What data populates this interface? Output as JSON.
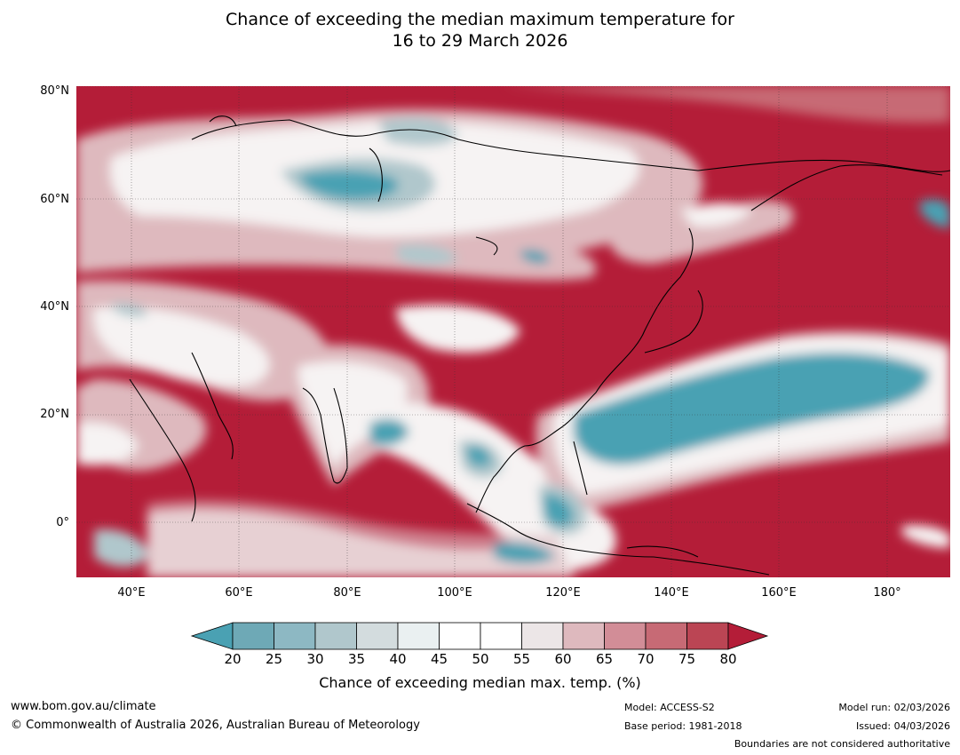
{
  "title": {
    "line1": "Chance of exceeding the median maximum temperature for",
    "line2": "16 to 29 March 2026"
  },
  "axes": {
    "lat_labels": [
      "80°N",
      "60°N",
      "40°N",
      "20°N",
      "0°"
    ],
    "lon_labels": [
      "40°E",
      "60°E",
      "80°E",
      "100°E",
      "120°E",
      "140°E",
      "160°E",
      "180°"
    ]
  },
  "colorbar": {
    "ticks": [
      "20",
      "25",
      "30",
      "35",
      "40",
      "45",
      "50",
      "55",
      "60",
      "65",
      "70",
      "75",
      "80"
    ],
    "colors": [
      "#4aa1b3",
      "#6ea9b6",
      "#8db8c3",
      "#b0c7cc",
      "#d3dcde",
      "#eaf0f1",
      "#ffffff",
      "#ffffff",
      "#ece6e7",
      "#deb9be",
      "#d28d97",
      "#c76a75",
      "#bb4554",
      "#b41d38"
    ],
    "label": "Chance of exceeding median max. temp. (%)"
  },
  "palette": {
    "hot": "#b41d38",
    "warm": "#c76a75",
    "mild": "#deb9be",
    "neutral": "#f6f3f3",
    "cool": "#b0c7cc",
    "cold": "#4aa1b3"
  },
  "footer": {
    "url": "www.bom.gov.au/climate",
    "copyright": "© Commonwealth of Australia 2026, Australian Bureau of Meteorology",
    "model": "Model: ACCESS-S2",
    "base_period": "Base period: 1981-2018",
    "model_run": "Model run: 02/03/2026",
    "issued": "Issued: 04/03/2026",
    "boundaries": "Boundaries are not considered authoritative"
  }
}
